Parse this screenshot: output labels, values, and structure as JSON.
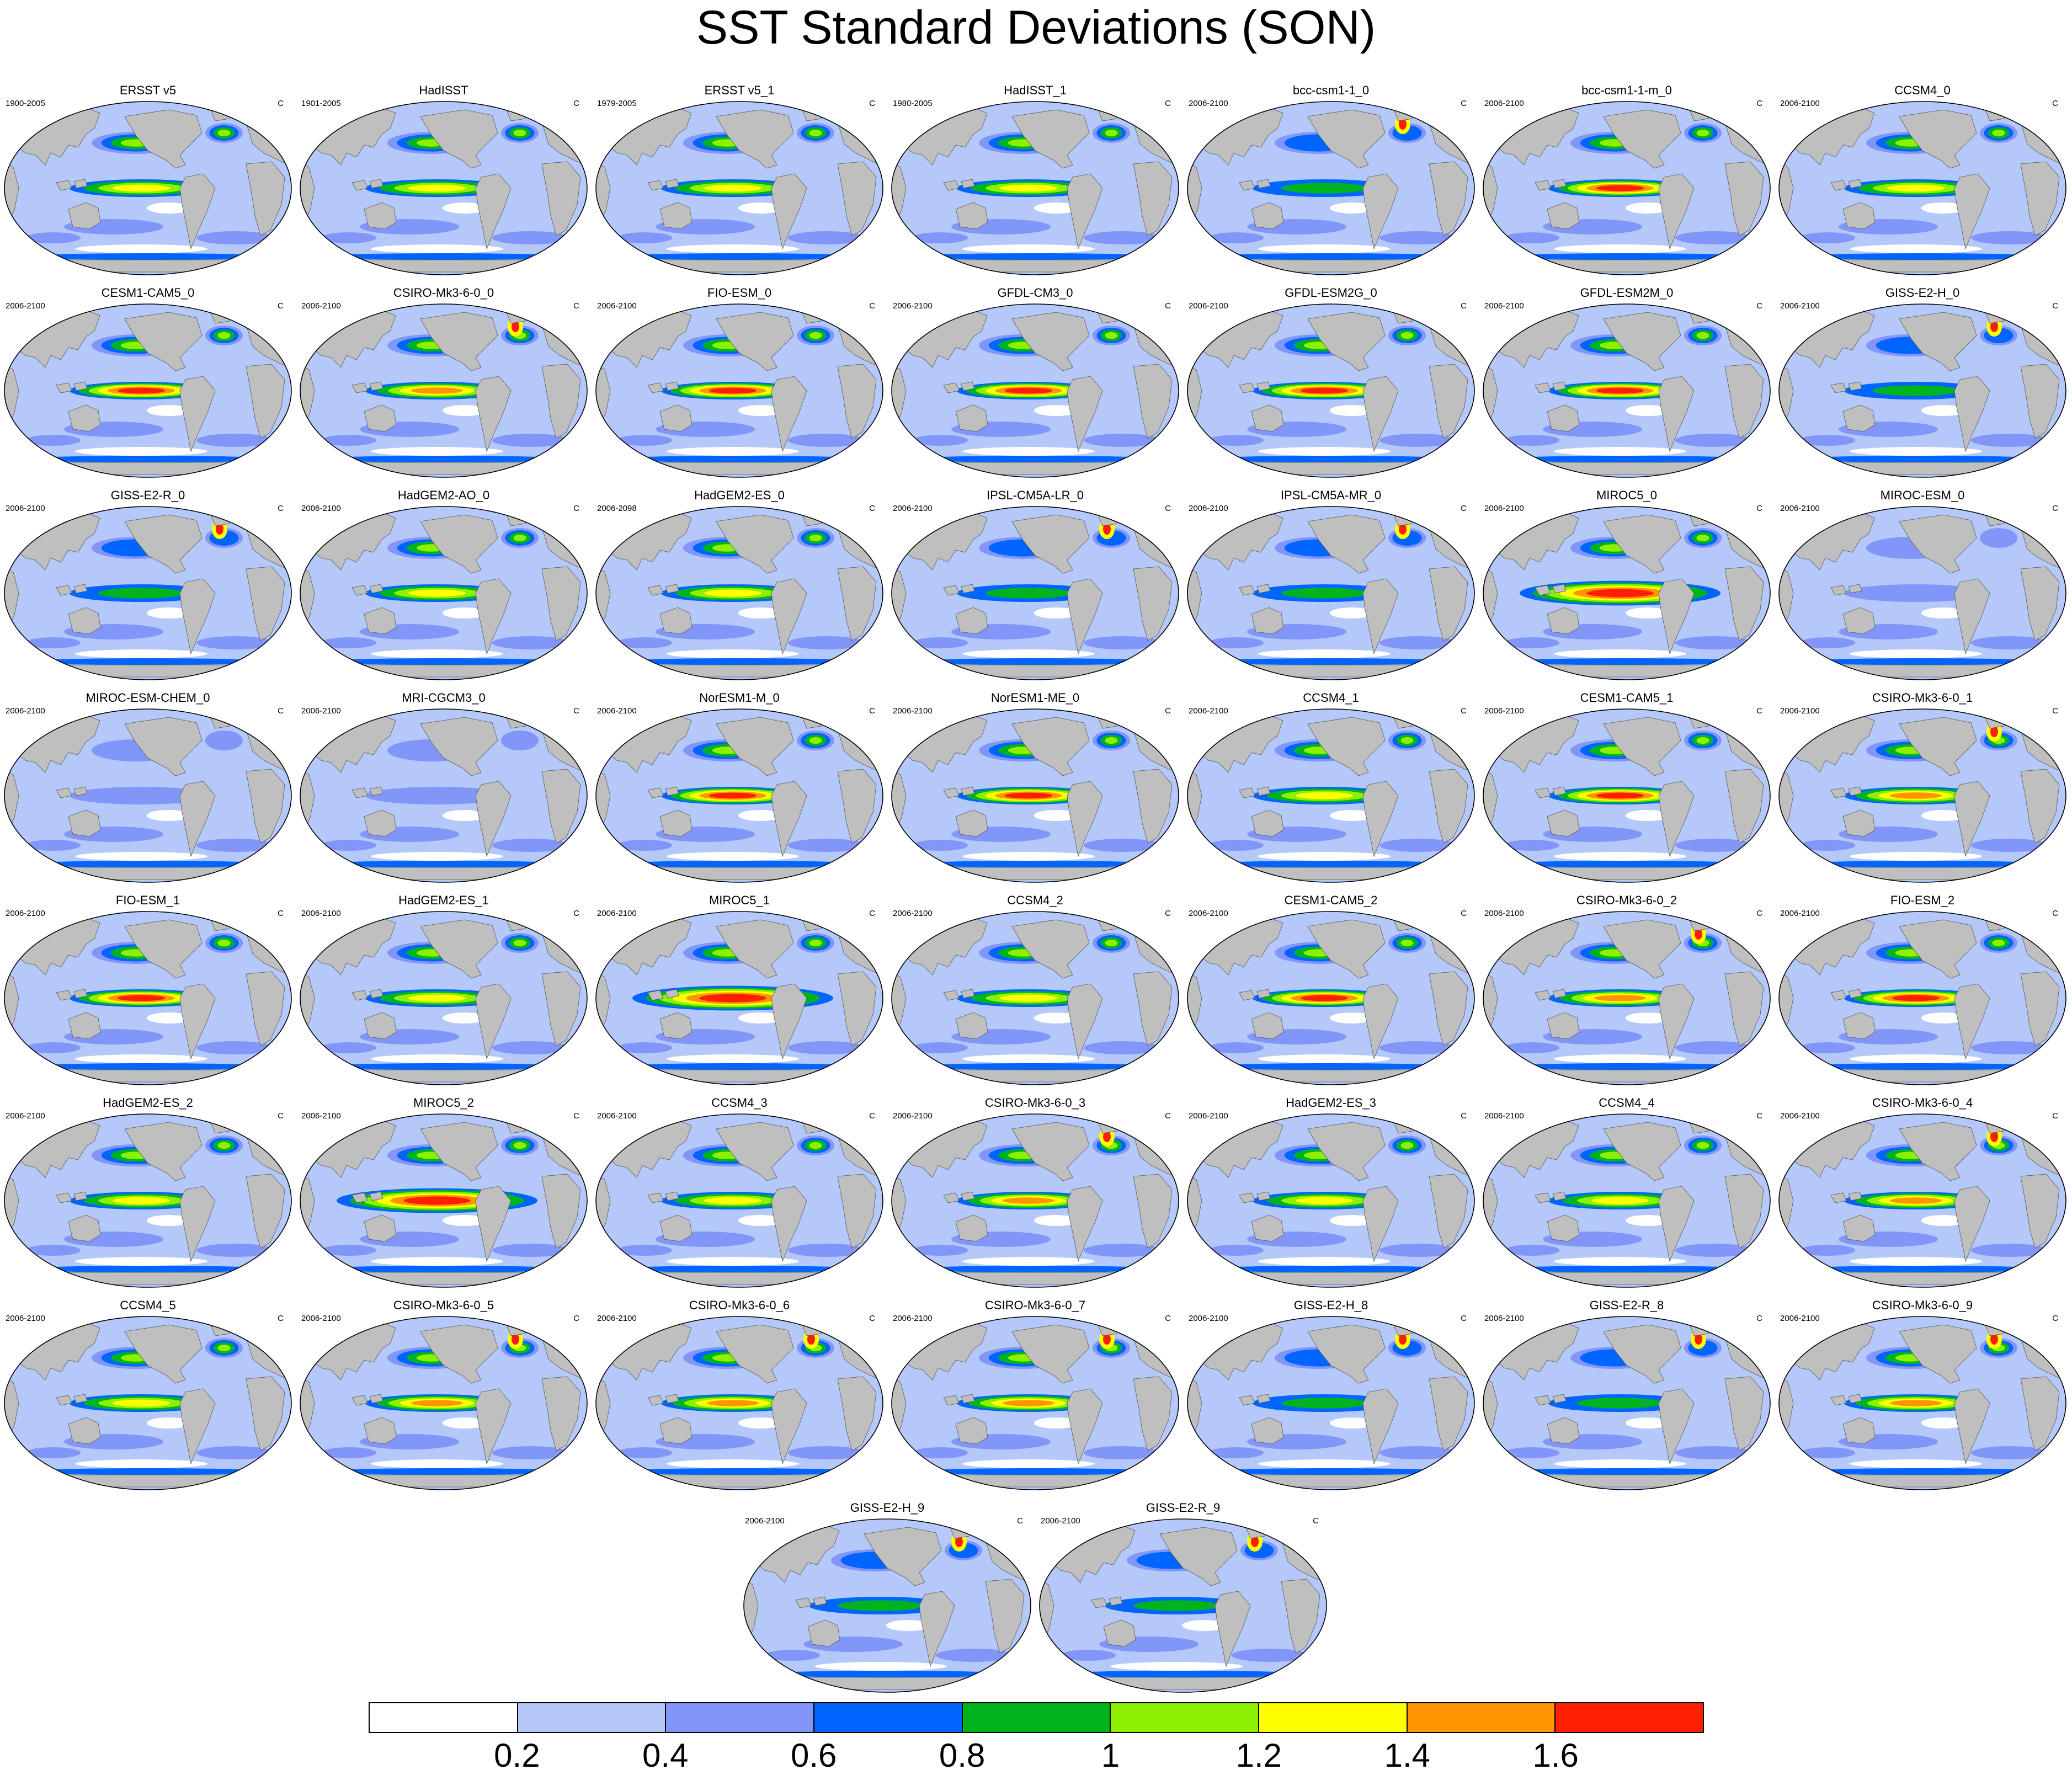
{
  "title": "SST Standard Deviations (SON)",
  "unit_label": "C",
  "panels": [
    {
      "name": "ERSST v5",
      "period": "1900-2005",
      "pattern": "obs"
    },
    {
      "name": "HadISST",
      "period": "1901-2005",
      "pattern": "obs"
    },
    {
      "name": "ERSST v5_1",
      "period": "1979-2005",
      "pattern": "obs"
    },
    {
      "name": "HadISST_1",
      "period": "1980-2005",
      "pattern": "obs"
    },
    {
      "name": "bcc-csm1-1_0",
      "period": "2006-2100",
      "pattern": "weak"
    },
    {
      "name": "bcc-csm1-1-m_0",
      "period": "2006-2100",
      "pattern": "strong"
    },
    {
      "name": "CCSM4_0",
      "period": "2006-2100",
      "pattern": "moderate"
    },
    {
      "name": "CESM1-CAM5_0",
      "period": "2006-2100",
      "pattern": "strong"
    },
    {
      "name": "CSIRO-Mk3-6-0_0",
      "period": "2006-2100",
      "pattern": "csiro"
    },
    {
      "name": "FIO-ESM_0",
      "period": "2006-2100",
      "pattern": "strong"
    },
    {
      "name": "GFDL-CM3_0",
      "period": "2006-2100",
      "pattern": "strong"
    },
    {
      "name": "GFDL-ESM2G_0",
      "period": "2006-2100",
      "pattern": "strong"
    },
    {
      "name": "GFDL-ESM2M_0",
      "period": "2006-2100",
      "pattern": "strong"
    },
    {
      "name": "GISS-E2-H_0",
      "period": "2006-2100",
      "pattern": "weak"
    },
    {
      "name": "GISS-E2-R_0",
      "period": "2006-2100",
      "pattern": "weak"
    },
    {
      "name": "HadGEM2-AO_0",
      "period": "2006-2100",
      "pattern": "moderate"
    },
    {
      "name": "HadGEM2-ES_0",
      "period": "2006-2098",
      "pattern": "moderate"
    },
    {
      "name": "IPSL-CM5A-LR_0",
      "period": "2006-2100",
      "pattern": "weak"
    },
    {
      "name": "IPSL-CM5A-MR_0",
      "period": "2006-2100",
      "pattern": "weak"
    },
    {
      "name": "MIROC5_0",
      "period": "2006-2100",
      "pattern": "miroc"
    },
    {
      "name": "MIROC-ESM_0",
      "period": "2006-2100",
      "pattern": "flat"
    },
    {
      "name": "MIROC-ESM-CHEM_0",
      "period": "2006-2100",
      "pattern": "flat"
    },
    {
      "name": "MRI-CGCM3_0",
      "period": "2006-2100",
      "pattern": "flat"
    },
    {
      "name": "NorESM1-M_0",
      "period": "2006-2100",
      "pattern": "strong"
    },
    {
      "name": "NorESM1-ME_0",
      "period": "2006-2100",
      "pattern": "strong"
    },
    {
      "name": "CCSM4_1",
      "period": "2006-2100",
      "pattern": "moderate"
    },
    {
      "name": "CESM1-CAM5_1",
      "period": "2006-2100",
      "pattern": "strong"
    },
    {
      "name": "CSIRO-Mk3-6-0_1",
      "period": "2006-2100",
      "pattern": "csiro"
    },
    {
      "name": "FIO-ESM_1",
      "period": "2006-2100",
      "pattern": "strong"
    },
    {
      "name": "HadGEM2-ES_1",
      "period": "2006-2100",
      "pattern": "moderate"
    },
    {
      "name": "MIROC5_1",
      "period": "2006-2100",
      "pattern": "miroc"
    },
    {
      "name": "CCSM4_2",
      "period": "2006-2100",
      "pattern": "moderate"
    },
    {
      "name": "CESM1-CAM5_2",
      "period": "2006-2100",
      "pattern": "strong"
    },
    {
      "name": "CSIRO-Mk3-6-0_2",
      "period": "2006-2100",
      "pattern": "csiro"
    },
    {
      "name": "FIO-ESM_2",
      "period": "2006-2100",
      "pattern": "strong"
    },
    {
      "name": "HadGEM2-ES_2",
      "period": "2006-2100",
      "pattern": "moderate"
    },
    {
      "name": "MIROC5_2",
      "period": "2006-2100",
      "pattern": "miroc"
    },
    {
      "name": "CCSM4_3",
      "period": "2006-2100",
      "pattern": "moderate"
    },
    {
      "name": "CSIRO-Mk3-6-0_3",
      "period": "2006-2100",
      "pattern": "csiro"
    },
    {
      "name": "HadGEM2-ES_3",
      "period": "2006-2100",
      "pattern": "moderate"
    },
    {
      "name": "CCSM4_4",
      "period": "2006-2100",
      "pattern": "moderate"
    },
    {
      "name": "CSIRO-Mk3-6-0_4",
      "period": "2006-2100",
      "pattern": "csiro"
    },
    {
      "name": "CCSM4_5",
      "period": "2006-2100",
      "pattern": "moderate"
    },
    {
      "name": "CSIRO-Mk3-6-0_5",
      "period": "2006-2100",
      "pattern": "csiro"
    },
    {
      "name": "CSIRO-Mk3-6-0_6",
      "period": "2006-2100",
      "pattern": "csiro"
    },
    {
      "name": "CSIRO-Mk3-6-0_7",
      "period": "2006-2100",
      "pattern": "csiro"
    },
    {
      "name": "GISS-E2-H_8",
      "period": "2006-2100",
      "pattern": "weak"
    },
    {
      "name": "GISS-E2-R_8",
      "period": "2006-2100",
      "pattern": "weak"
    },
    {
      "name": "CSIRO-Mk3-6-0_9",
      "period": "2006-2100",
      "pattern": "csiro"
    },
    {
      "name": "GISS-E2-H_9",
      "period": "2006-2100",
      "pattern": "weak"
    },
    {
      "name": "GISS-E2-R_9",
      "period": "2006-2100",
      "pattern": "weak"
    }
  ],
  "colorbar": {
    "colors": [
      "#ffffff",
      "#b4c8fa",
      "#8296fa",
      "#0064ff",
      "#00b41e",
      "#8cf000",
      "#ffff00",
      "#ff9600",
      "#ff1e00"
    ],
    "ticks": [
      "0.2",
      "0.4",
      "0.6",
      "0.8",
      "1",
      "1.2",
      "1.4",
      "1.6"
    ]
  },
  "land_color": "#bfbfbf"
}
